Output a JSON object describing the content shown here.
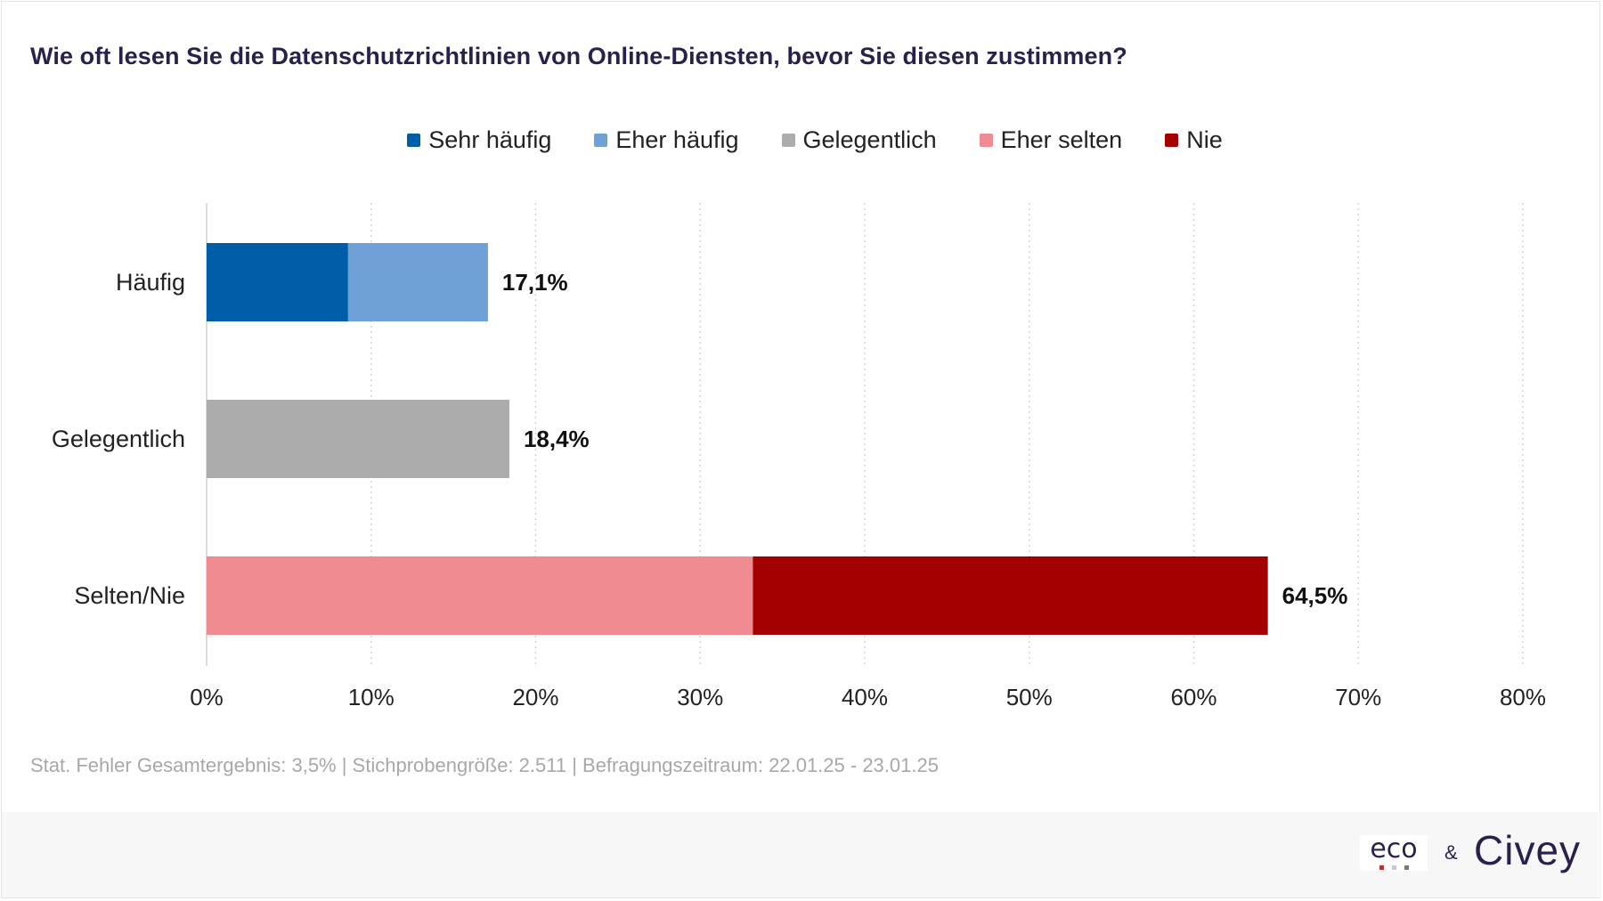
{
  "title": "Wie oft lesen Sie die Datenschutzrichtlinien von Online-Diensten, bevor Sie diesen zustimmen?",
  "legend": [
    {
      "label": "Sehr häufig",
      "color": "#005ea8"
    },
    {
      "label": "Eher häufig",
      "color": "#6fa0d6"
    },
    {
      "label": "Gelegentlich",
      "color": "#acacac"
    },
    {
      "label": "Eher selten",
      "color": "#f08b92"
    },
    {
      "label": "Nie",
      "color": "#a50000"
    }
  ],
  "chart_data": {
    "type": "bar",
    "orientation": "horizontal",
    "stacked": true,
    "categories": [
      "Häufig",
      "Gelegentlich",
      "Selten/Nie"
    ],
    "series": [
      {
        "name": "Sehr häufig",
        "color": "#005ea8",
        "values": [
          8.6,
          0,
          0
        ]
      },
      {
        "name": "Eher häufig",
        "color": "#6fa0d6",
        "values": [
          8.5,
          0,
          0
        ]
      },
      {
        "name": "Gelegentlich",
        "color": "#acacac",
        "values": [
          0,
          18.4,
          0
        ]
      },
      {
        "name": "Eher selten",
        "color": "#f08b92",
        "values": [
          0,
          0,
          33.2
        ]
      },
      {
        "name": "Nie",
        "color": "#a50000",
        "values": [
          0,
          0,
          31.3
        ]
      }
    ],
    "totals": [
      17.1,
      18.4,
      64.5
    ],
    "total_labels": [
      "17,1%",
      "18,4%",
      "64,5%"
    ],
    "xlim": [
      0,
      80
    ],
    "xticks": [
      0,
      10,
      20,
      30,
      40,
      50,
      60,
      70,
      80
    ],
    "xtick_labels": [
      "0%",
      "10%",
      "20%",
      "30%",
      "40%",
      "50%",
      "60%",
      "70%",
      "80%"
    ],
    "grid": "vertical dotted",
    "legend_position": "top-center"
  },
  "footnote": "Stat. Fehler Gesamtergebnis: 3,5% | Stichprobengröße: 2.511 | Befragungszeitraum: 22.01.25 - 23.01.25",
  "brands": {
    "eco": "eco",
    "eco_dot_colors": [
      "#e2231a",
      "#c8c8c8",
      "#7a7a7a"
    ],
    "ampersand": "&",
    "civey": "Civey"
  }
}
